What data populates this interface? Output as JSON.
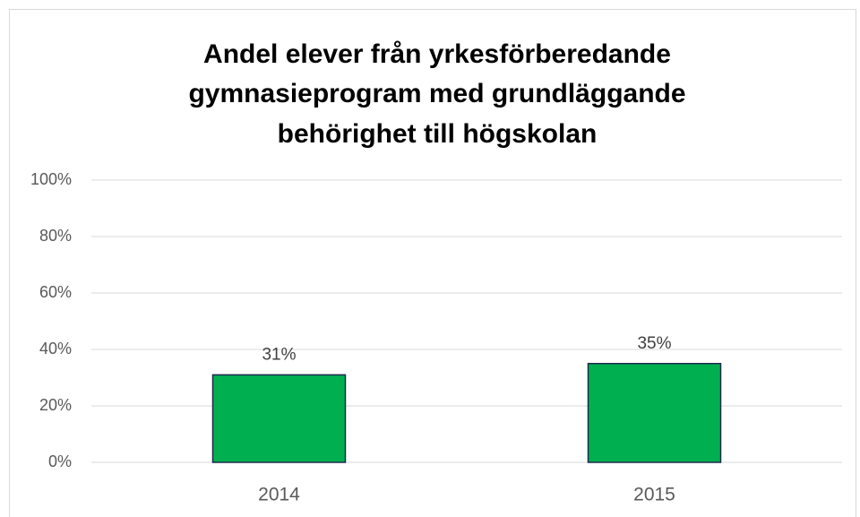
{
  "chart_data": {
    "type": "bar",
    "title": [
      "Andel elever från yrkesförberedande",
      "gymnasieprogram med grundläggande",
      "behörighet till högskolan"
    ],
    "categories": [
      "2014",
      "2015"
    ],
    "values": [
      31,
      35
    ],
    "value_labels": [
      "31%",
      "35%"
    ],
    "color": "#00b050",
    "ylim": [
      0,
      100
    ],
    "yticks": [
      {
        "value": 0,
        "label": "0%"
      },
      {
        "value": 20,
        "label": "20%"
      },
      {
        "value": 40,
        "label": "40%"
      },
      {
        "value": 60,
        "label": "60%"
      },
      {
        "value": 80,
        "label": "80%"
      },
      {
        "value": 100,
        "label": "100%"
      }
    ],
    "grid": true
  }
}
